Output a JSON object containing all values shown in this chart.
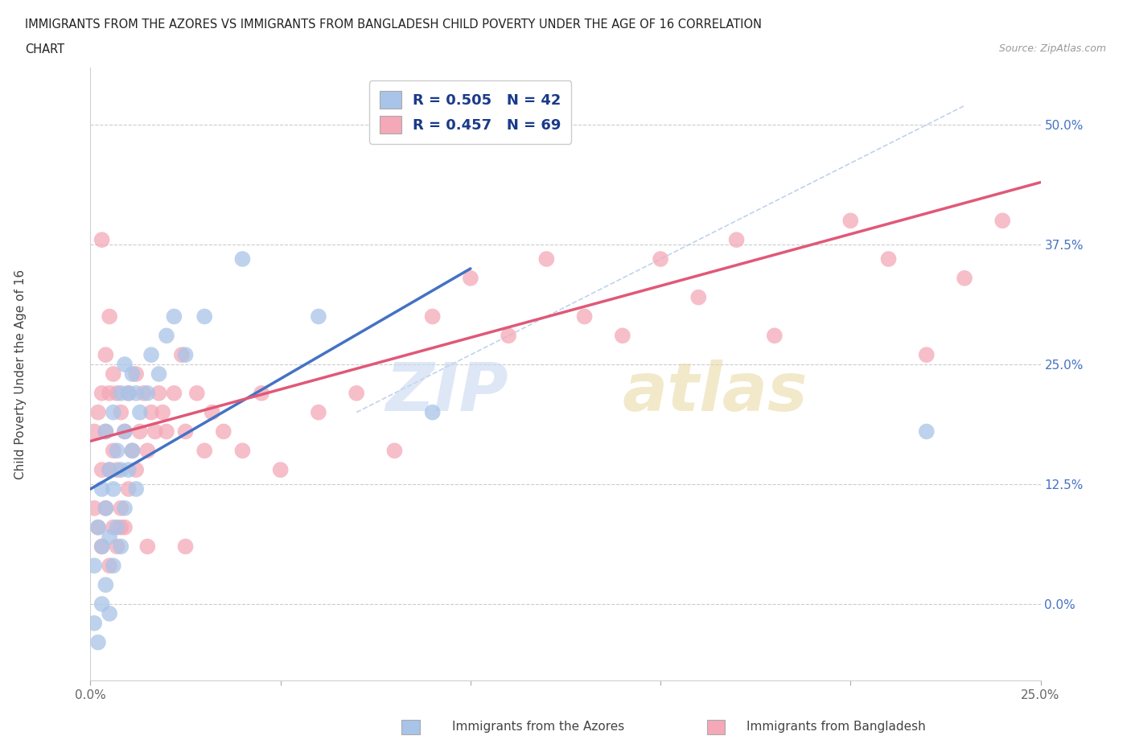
{
  "title_line1": "IMMIGRANTS FROM THE AZORES VS IMMIGRANTS FROM BANGLADESH CHILD POVERTY UNDER THE AGE OF 16 CORRELATION",
  "title_line2": "CHART",
  "source_text": "Source: ZipAtlas.com",
  "ylabel": "Child Poverty Under the Age of 16",
  "xlim": [
    0.0,
    0.25
  ],
  "ylim": [
    -0.08,
    0.56
  ],
  "yticks": [
    0.0,
    0.125,
    0.25,
    0.375,
    0.5
  ],
  "ytick_labels": [
    "0.0%",
    "12.5%",
    "25.0%",
    "37.5%",
    "50.0%"
  ],
  "xticks": [
    0.0,
    0.05,
    0.1,
    0.15,
    0.2,
    0.25
  ],
  "xtick_labels": [
    "0.0%",
    "",
    "",
    "",
    "",
    "25.0%"
  ],
  "azores_R": 0.505,
  "azores_N": 42,
  "bangladesh_R": 0.457,
  "bangladesh_N": 69,
  "azores_color": "#a8c4e8",
  "bangladesh_color": "#f4a8b8",
  "azores_line_color": "#4472c4",
  "bangladesh_line_color": "#e05878",
  "diag_line_color": "#b0c8e8",
  "background_color": "#ffffff",
  "azores_x": [
    0.001,
    0.001,
    0.002,
    0.002,
    0.003,
    0.003,
    0.003,
    0.004,
    0.004,
    0.004,
    0.005,
    0.005,
    0.005,
    0.006,
    0.006,
    0.006,
    0.007,
    0.007,
    0.008,
    0.008,
    0.008,
    0.009,
    0.009,
    0.009,
    0.01,
    0.01,
    0.011,
    0.011,
    0.012,
    0.012,
    0.013,
    0.015,
    0.016,
    0.018,
    0.02,
    0.022,
    0.025,
    0.03,
    0.04,
    0.06,
    0.09,
    0.22
  ],
  "azores_y": [
    -0.02,
    0.04,
    -0.04,
    0.08,
    0.0,
    0.06,
    0.12,
    0.02,
    0.1,
    0.18,
    -0.01,
    0.07,
    0.14,
    0.04,
    0.12,
    0.2,
    0.08,
    0.16,
    0.06,
    0.14,
    0.22,
    0.1,
    0.18,
    0.25,
    0.14,
    0.22,
    0.16,
    0.24,
    0.12,
    0.22,
    0.2,
    0.22,
    0.26,
    0.24,
    0.28,
    0.3,
    0.26,
    0.3,
    0.36,
    0.3,
    0.2,
    0.18
  ],
  "bangladesh_x": [
    0.001,
    0.001,
    0.002,
    0.002,
    0.003,
    0.003,
    0.003,
    0.004,
    0.004,
    0.004,
    0.005,
    0.005,
    0.005,
    0.006,
    0.006,
    0.006,
    0.007,
    0.007,
    0.007,
    0.008,
    0.008,
    0.009,
    0.009,
    0.01,
    0.01,
    0.011,
    0.012,
    0.012,
    0.013,
    0.014,
    0.015,
    0.016,
    0.017,
    0.018,
    0.019,
    0.02,
    0.022,
    0.024,
    0.025,
    0.028,
    0.03,
    0.032,
    0.035,
    0.04,
    0.045,
    0.05,
    0.06,
    0.07,
    0.08,
    0.09,
    0.1,
    0.11,
    0.12,
    0.13,
    0.14,
    0.15,
    0.16,
    0.17,
    0.18,
    0.2,
    0.21,
    0.22,
    0.23,
    0.24,
    0.003,
    0.005,
    0.008,
    0.015,
    0.025
  ],
  "bangladesh_y": [
    0.1,
    0.18,
    0.08,
    0.2,
    0.06,
    0.14,
    0.22,
    0.1,
    0.18,
    0.26,
    0.04,
    0.14,
    0.22,
    0.08,
    0.16,
    0.24,
    0.06,
    0.14,
    0.22,
    0.1,
    0.2,
    0.08,
    0.18,
    0.12,
    0.22,
    0.16,
    0.14,
    0.24,
    0.18,
    0.22,
    0.16,
    0.2,
    0.18,
    0.22,
    0.2,
    0.18,
    0.22,
    0.26,
    0.18,
    0.22,
    0.16,
    0.2,
    0.18,
    0.16,
    0.22,
    0.14,
    0.2,
    0.22,
    0.16,
    0.3,
    0.34,
    0.28,
    0.36,
    0.3,
    0.28,
    0.36,
    0.32,
    0.38,
    0.28,
    0.4,
    0.36,
    0.26,
    0.34,
    0.4,
    0.38,
    0.3,
    0.08,
    0.06,
    0.06
  ]
}
